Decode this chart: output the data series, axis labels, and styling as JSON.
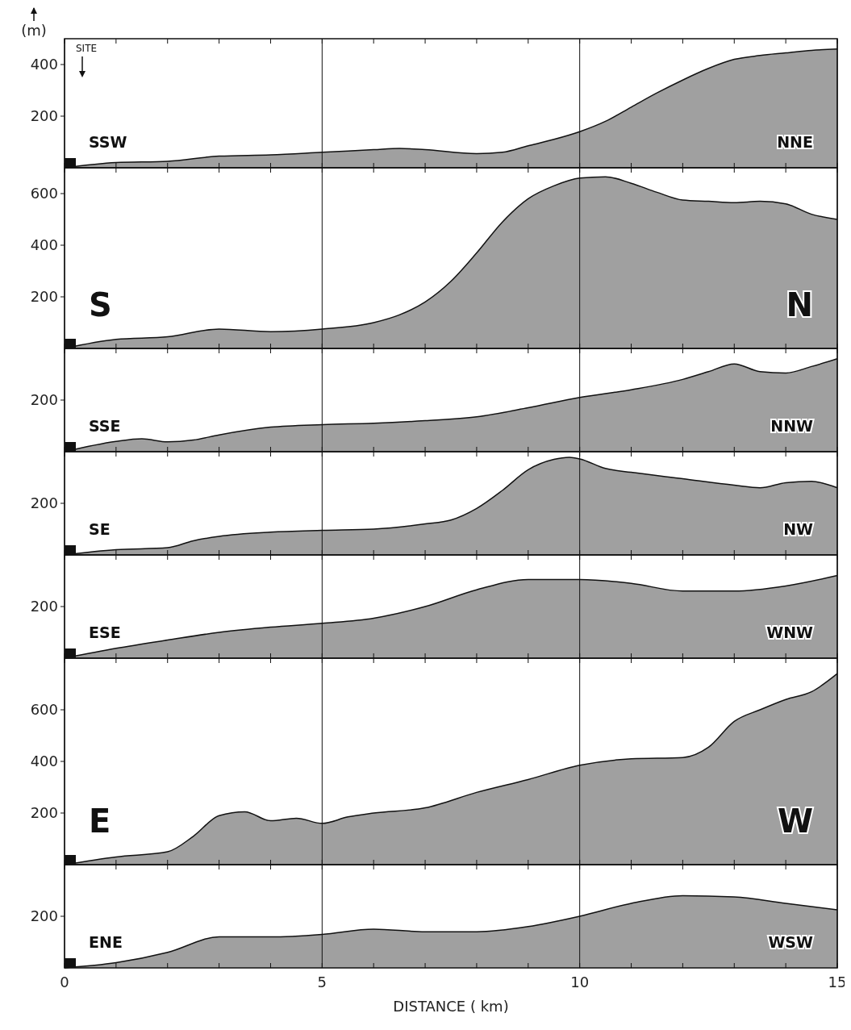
{
  "chart_data": [
    {
      "type": "area",
      "ylabel": "(m)",
      "annotations": [
        "SSW",
        "NNE",
        "SITE"
      ],
      "x": [
        0,
        1,
        2,
        3,
        4,
        5,
        6,
        6.5,
        7,
        8,
        8.5,
        9,
        9.5,
        10,
        10.5,
        11,
        11.5,
        12,
        12.5,
        13,
        13.5,
        14,
        14.5,
        15
      ],
      "values": [
        0,
        20,
        25,
        45,
        50,
        60,
        70,
        75,
        70,
        55,
        60,
        85,
        110,
        140,
        180,
        235,
        290,
        340,
        385,
        420,
        435,
        445,
        455,
        460
      ],
      "color": "#a0a0a0",
      "xlim": [
        0,
        15
      ],
      "xticks": [
        0,
        {
          "value": 1,
          "label": null
        },
        {
          "value": 2,
          "label": null
        },
        {
          "value": 3,
          "label": null
        },
        {
          "value": 4,
          "label": null
        },
        5,
        {
          "value": 6,
          "label": null
        },
        {
          "value": 7,
          "label": null
        },
        {
          "value": 8,
          "label": null
        },
        {
          "value": 9,
          "label": null
        },
        10,
        {
          "value": 11,
          "label": null
        },
        {
          "value": 12,
          "label": null
        },
        {
          "value": 13,
          "label": null
        },
        {
          "value": 14,
          "label": null
        },
        15
      ],
      "ylim": [
        0,
        500
      ],
      "yticks": [
        200,
        400
      ],
      "grid": "x",
      "tick_labels": "y"
    },
    {
      "type": "area",
      "annotations": [
        "S",
        "N"
      ],
      "x": [
        0,
        1,
        2,
        3,
        4,
        5,
        6,
        6.5,
        7,
        7.5,
        8,
        8.5,
        9,
        9.5,
        10,
        10.5,
        11,
        11.5,
        12,
        12.5,
        13,
        13.5,
        14,
        14.5,
        15
      ],
      "values": [
        0,
        35,
        45,
        75,
        65,
        75,
        100,
        130,
        180,
        260,
        370,
        490,
        580,
        630,
        660,
        665,
        640,
        605,
        575,
        570,
        565,
        570,
        560,
        520,
        500
      ],
      "color": "#a0a0a0",
      "xlim": [
        0,
        15
      ],
      "xticks": [
        0,
        {
          "value": 1,
          "label": null
        },
        {
          "value": 2,
          "label": null
        },
        {
          "value": 3,
          "label": null
        },
        {
          "value": 4,
          "label": null
        },
        5,
        {
          "value": 6,
          "label": null
        },
        {
          "value": 7,
          "label": null
        },
        {
          "value": 8,
          "label": null
        },
        {
          "value": 9,
          "label": null
        },
        10,
        {
          "value": 11,
          "label": null
        },
        {
          "value": 12,
          "label": null
        },
        {
          "value": 13,
          "label": null
        },
        {
          "value": 14,
          "label": null
        },
        15
      ],
      "ylim": [
        0,
        700
      ],
      "yticks": [
        200,
        400,
        600
      ],
      "grid": "x",
      "tick_labels": "y"
    },
    {
      "type": "area",
      "annotations": [
        "SSE",
        "NNW"
      ],
      "x": [
        0,
        1,
        1.5,
        2,
        2.5,
        3,
        4,
        5,
        6,
        7,
        8,
        9,
        10,
        11,
        12,
        12.5,
        13,
        13.5,
        14,
        14.5,
        15
      ],
      "values": [
        0,
        40,
        50,
        38,
        45,
        65,
        95,
        105,
        110,
        120,
        135,
        170,
        210,
        240,
        280,
        310,
        340,
        310,
        305,
        330,
        360
      ],
      "color": "#a0a0a0",
      "xlim": [
        0,
        15
      ],
      "xticks": [
        0,
        {
          "value": 1,
          "label": null
        },
        {
          "value": 2,
          "label": null
        },
        {
          "value": 3,
          "label": null
        },
        {
          "value": 4,
          "label": null
        },
        5,
        {
          "value": 6,
          "label": null
        },
        {
          "value": 7,
          "label": null
        },
        {
          "value": 8,
          "label": null
        },
        {
          "value": 9,
          "label": null
        },
        10,
        {
          "value": 11,
          "label": null
        },
        {
          "value": 12,
          "label": null
        },
        {
          "value": 13,
          "label": null
        },
        {
          "value": 14,
          "label": null
        },
        15
      ],
      "ylim": [
        0,
        400
      ],
      "yticks": [
        200
      ],
      "grid": "x",
      "tick_labels": "y"
    },
    {
      "type": "area",
      "annotations": [
        "SE",
        "NW"
      ],
      "x": [
        0,
        1,
        2,
        2.5,
        3,
        4,
        5,
        6,
        7,
        7.5,
        8,
        8.5,
        9,
        9.5,
        9.8,
        10,
        10.5,
        11,
        12,
        13,
        13.5,
        14,
        14.5,
        15
      ],
      "values": [
        0,
        20,
        28,
        55,
        72,
        88,
        95,
        100,
        120,
        135,
        180,
        250,
        330,
        370,
        378,
        372,
        335,
        320,
        295,
        270,
        260,
        280,
        285,
        260
      ],
      "color": "#a0a0a0",
      "xlim": [
        0,
        15
      ],
      "xticks": [
        0,
        {
          "value": 1,
          "label": null
        },
        {
          "value": 2,
          "label": null
        },
        {
          "value": 3,
          "label": null
        },
        {
          "value": 4,
          "label": null
        },
        5,
        {
          "value": 6,
          "label": null
        },
        {
          "value": 7,
          "label": null
        },
        {
          "value": 8,
          "label": null
        },
        {
          "value": 9,
          "label": null
        },
        10,
        {
          "value": 11,
          "label": null
        },
        {
          "value": 12,
          "label": null
        },
        {
          "value": 13,
          "label": null
        },
        {
          "value": 14,
          "label": null
        },
        15
      ],
      "ylim": [
        0,
        400
      ],
      "yticks": [
        200
      ],
      "grid": "x",
      "tick_labels": "y"
    },
    {
      "type": "area",
      "annotations": [
        "ESE",
        "WNW"
      ],
      "x": [
        0,
        1,
        2,
        3,
        4,
        5,
        6,
        7,
        8,
        9,
        10,
        11,
        12,
        13,
        14,
        15
      ],
      "values": [
        0,
        38,
        70,
        100,
        120,
        135,
        155,
        200,
        265,
        305,
        305,
        290,
        260,
        260,
        280,
        320
      ],
      "color": "#a0a0a0",
      "xlim": [
        0,
        15
      ],
      "xticks": [
        0,
        {
          "value": 1,
          "label": null
        },
        {
          "value": 2,
          "label": null
        },
        {
          "value": 3,
          "label": null
        },
        {
          "value": 4,
          "label": null
        },
        5,
        {
          "value": 6,
          "label": null
        },
        {
          "value": 7,
          "label": null
        },
        {
          "value": 8,
          "label": null
        },
        {
          "value": 9,
          "label": null
        },
        10,
        {
          "value": 11,
          "label": null
        },
        {
          "value": 12,
          "label": null
        },
        {
          "value": 13,
          "label": null
        },
        {
          "value": 14,
          "label": null
        },
        15
      ],
      "ylim": [
        0,
        400
      ],
      "yticks": [
        200
      ],
      "grid": "x",
      "tick_labels": "y"
    },
    {
      "type": "area",
      "annotations": [
        "E",
        "W"
      ],
      "x": [
        0,
        1,
        2,
        2.5,
        3,
        3.5,
        4,
        4.5,
        5,
        5.5,
        6,
        7,
        8,
        9,
        10,
        11,
        12,
        12.5,
        13,
        13.5,
        14,
        14.5,
        15
      ],
      "values": [
        0,
        30,
        50,
        110,
        190,
        205,
        170,
        180,
        160,
        185,
        200,
        220,
        280,
        330,
        385,
        410,
        415,
        455,
        555,
        600,
        640,
        670,
        740
      ],
      "color": "#a0a0a0",
      "xlim": [
        0,
        15
      ],
      "xticks": [
        0,
        {
          "value": 1,
          "label": null
        },
        {
          "value": 2,
          "label": null
        },
        {
          "value": 3,
          "label": null
        },
        {
          "value": 4,
          "label": null
        },
        5,
        {
          "value": 6,
          "label": null
        },
        {
          "value": 7,
          "label": null
        },
        {
          "value": 8,
          "label": null
        },
        {
          "value": 9,
          "label": null
        },
        10,
        {
          "value": 11,
          "label": null
        },
        {
          "value": 12,
          "label": null
        },
        {
          "value": 13,
          "label": null
        },
        {
          "value": 14,
          "label": null
        },
        15
      ],
      "ylim": [
        0,
        800
      ],
      "yticks": [
        200,
        400,
        600
      ],
      "grid": "x",
      "tick_labels": "y"
    },
    {
      "type": "area",
      "xlabel": "DISTANCE ( km)",
      "annotations": [
        "ENE",
        "WSW"
      ],
      "x": [
        0,
        1,
        2,
        3,
        4,
        5,
        6,
        7,
        8,
        9,
        10,
        11,
        12,
        13,
        14,
        15
      ],
      "values": [
        0,
        20,
        60,
        120,
        120,
        130,
        150,
        140,
        140,
        160,
        200,
        250,
        280,
        275,
        250,
        225
      ],
      "color": "#a0a0a0",
      "xlim": [
        0,
        15
      ],
      "xticks": [
        0,
        {
          "value": 1,
          "label": null
        },
        {
          "value": 2,
          "label": null
        },
        {
          "value": 3,
          "label": null
        },
        {
          "value": 4,
          "label": null
        },
        5,
        {
          "value": 6,
          "label": null
        },
        {
          "value": 7,
          "label": null
        },
        {
          "value": 8,
          "label": null
        },
        {
          "value": 9,
          "label": null
        },
        10,
        {
          "value": 11,
          "label": null
        },
        {
          "value": 12,
          "label": null
        },
        {
          "value": 13,
          "label": null
        },
        {
          "value": 14,
          "label": null
        },
        15
      ],
      "ylim": [
        0,
        400
      ],
      "yticks": [
        200
      ],
      "grid": "x"
    }
  ]
}
